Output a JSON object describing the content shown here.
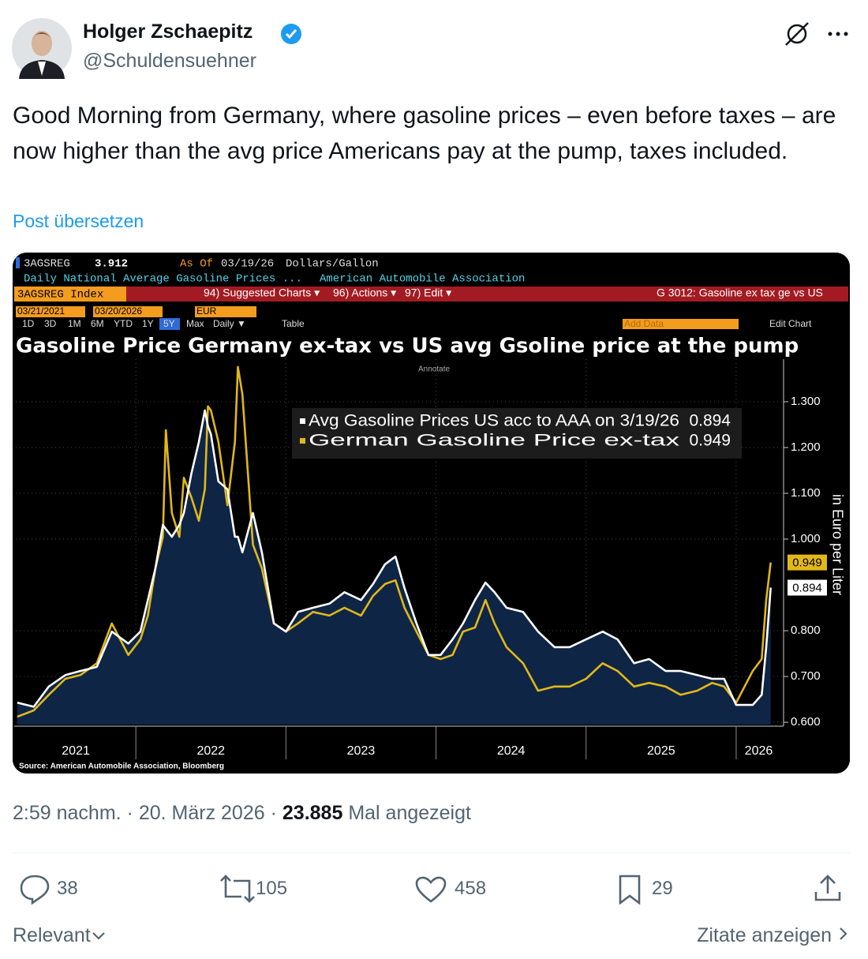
{
  "header": {
    "name": "Holger Zschaepitz",
    "handle": "@Schuldensuehner"
  },
  "post": {
    "text": "Good Morning from Germany, where gasoline prices – even before taxes – are now higher than the avg price Americans pay at the pump, taxes included.",
    "translate": "Post übersetzen"
  },
  "terminal": {
    "ticker": "3AGSREG",
    "last": 3.912,
    "as_of_label": "As Of",
    "as_of": "03/19/26",
    "units": "Dollars/Gallon",
    "description": "Daily National Average Gasoline Prices ...",
    "source_name": "American Automobile Association",
    "security": "3AGSREG Index",
    "menu": [
      "94) Suggested Charts ▾",
      "96) Actions ▾",
      "97) Edit ▾"
    ],
    "chart_name": "G 3012: Gasoline ex tax ge vs US",
    "start_date": "03/21/2021",
    "end_date": "03/20/2026",
    "currency": "EUR",
    "periods": [
      "1D",
      "3D",
      "1M",
      "6M",
      "YTD",
      "1Y",
      "5Y",
      "Max"
    ],
    "frequency": "Daily ▼",
    "table": "Table",
    "add_data": "Add Data",
    "edit_chart": "Edit Chart",
    "annotate": "Annotate"
  },
  "chart_data": {
    "type": "line",
    "title": "Gasoline Price Germany ex-tax vs US avg Gsoline price at the pump",
    "ylabel": "in Euro per Liter",
    "source": "Source: American Automobile Association, Bloomberg",
    "x": [
      2021.21,
      2021.32,
      2021.42,
      2021.53,
      2021.63,
      2021.74,
      2021.84,
      2021.95,
      2022.03,
      2022.08,
      2022.13,
      2022.18,
      2022.2,
      2022.24,
      2022.29,
      2022.32,
      2022.37,
      2022.42,
      2022.46,
      2022.48,
      2022.5,
      2022.55,
      2022.61,
      2022.66,
      2022.68,
      2022.71,
      2022.78,
      2022.84,
      2022.92,
      2023.0,
      2023.08,
      2023.18,
      2023.29,
      2023.39,
      2023.5,
      2023.58,
      2023.66,
      2023.73,
      2023.79,
      2023.87,
      2023.95,
      2024.03,
      2024.11,
      2024.18,
      2024.26,
      2024.33,
      2024.39,
      2024.47,
      2024.58,
      2024.68,
      2024.79,
      2024.89,
      2025.0,
      2025.11,
      2025.21,
      2025.32,
      2025.42,
      2025.53,
      2025.63,
      2025.74,
      2025.84,
      2025.92,
      2026.0,
      2026.11,
      2026.17,
      2026.2,
      2026.23
    ],
    "series": [
      {
        "name": "Avg Gasoline Prices US acc to AAA on 3/19/26",
        "color": "#ffffff",
        "fill": "#0e2546",
        "values": [
          0.643,
          0.634,
          0.678,
          0.703,
          0.712,
          0.721,
          0.798,
          0.772,
          0.798,
          0.867,
          0.936,
          1.031,
          1.022,
          1.005,
          1.031,
          1.057,
          1.143,
          1.212,
          1.281,
          1.247,
          1.229,
          1.126,
          1.109,
          1.005,
          1.005,
          0.971,
          1.057,
          0.971,
          0.816,
          0.798,
          0.841,
          0.85,
          0.859,
          0.884,
          0.867,
          0.902,
          0.945,
          0.962,
          0.893,
          0.816,
          0.747,
          0.747,
          0.781,
          0.816,
          0.867,
          0.905,
          0.884,
          0.85,
          0.841,
          0.798,
          0.764,
          0.764,
          0.781,
          0.798,
          0.781,
          0.729,
          0.738,
          0.712,
          0.712,
          0.703,
          0.695,
          0.695,
          0.638,
          0.638,
          0.66,
          0.764,
          0.894
        ]
      },
      {
        "name": "German Gasoline Price ex-tax",
        "color": "#e1b819",
        "values": [
          0.612,
          0.626,
          0.66,
          0.695,
          0.703,
          0.729,
          0.816,
          0.747,
          0.781,
          0.833,
          0.936,
          1.005,
          1.238,
          1.057,
          1.005,
          1.134,
          1.091,
          1.04,
          1.109,
          1.29,
          1.281,
          1.212,
          1.074,
          1.212,
          1.376,
          1.316,
          0.988,
          0.936,
          0.816,
          0.798,
          0.816,
          0.841,
          0.833,
          0.85,
          0.833,
          0.876,
          0.902,
          0.91,
          0.85,
          0.798,
          0.747,
          0.738,
          0.747,
          0.798,
          0.807,
          0.867,
          0.816,
          0.764,
          0.729,
          0.669,
          0.678,
          0.678,
          0.695,
          0.729,
          0.712,
          0.678,
          0.686,
          0.678,
          0.66,
          0.669,
          0.686,
          0.678,
          0.643,
          0.712,
          0.738,
          0.867,
          0.949
        ]
      }
    ],
    "xlim": [
      2021.2,
      2026.3
    ],
    "xticks": [
      2021,
      2022,
      2023,
      2024,
      2025,
      2026
    ],
    "ylim": [
      0.595,
      1.393
    ],
    "yticks": [
      {
        "value": 0.6,
        "label": "0.600"
      },
      {
        "value": 0.7,
        "label": "0.700"
      },
      {
        "value": 0.8,
        "label": "0.800"
      },
      {
        "value": 1.0,
        "label": "1.000"
      },
      {
        "value": 1.1,
        "label": "1.100"
      },
      {
        "value": 1.2,
        "label": "1.200"
      },
      {
        "value": 1.3,
        "label": "1.300"
      }
    ],
    "grid": true
  },
  "meta": {
    "time": "2:59 nachm.",
    "separator": "·",
    "date": "20. März 2026",
    "views": "23.885",
    "views_label": "Mal angezeigt"
  },
  "actions": {
    "replies": 38,
    "reposts": 105,
    "likes": 458,
    "bookmarks": 29
  },
  "footer": {
    "sort": "Relevant",
    "quotes": "Zitate anzeigen"
  }
}
